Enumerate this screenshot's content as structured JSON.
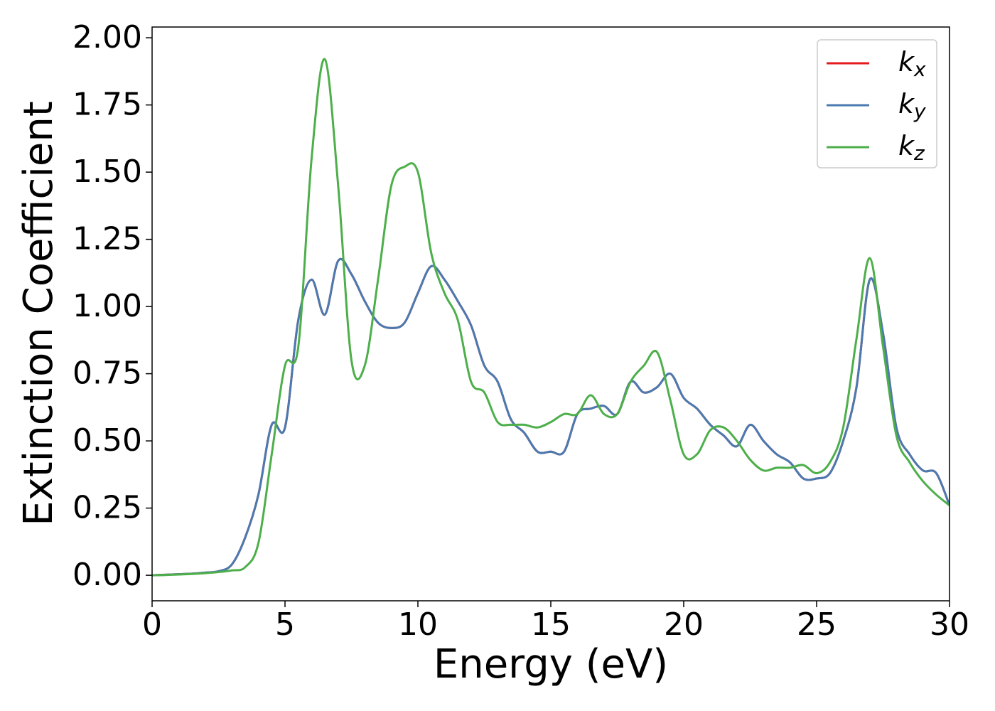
{
  "chart_data": {
    "type": "line",
    "xlabel": "Energy (eV)",
    "ylabel": "Extinction Coefficient",
    "x": [
      0,
      0.5,
      1,
      1.5,
      2,
      2.5,
      3,
      3.5,
      4,
      4.5,
      5,
      5.5,
      6,
      6.5,
      7,
      7.5,
      8,
      8.5,
      9,
      9.5,
      10,
      10.5,
      11,
      11.5,
      12,
      12.5,
      13,
      13.5,
      14,
      14.5,
      15,
      15.5,
      16,
      16.5,
      17,
      17.5,
      18,
      18.5,
      19,
      19.5,
      20,
      20.5,
      21,
      21.5,
      22,
      22.5,
      23,
      23.5,
      24,
      24.5,
      25,
      25.5,
      26,
      26.5,
      27,
      27.5,
      28,
      28.5,
      29,
      29.5,
      30
    ],
    "series": [
      {
        "name": "kx",
        "color": "#e41a1c",
        "values": [
          0,
          0.002,
          0.004,
          0.006,
          0.01,
          0.015,
          0.04,
          0.14,
          0.3,
          0.56,
          0.55,
          0.95,
          1.1,
          0.97,
          1.17,
          1.12,
          1.02,
          0.94,
          0.92,
          0.94,
          1.05,
          1.15,
          1.1,
          1.02,
          0.93,
          0.78,
          0.72,
          0.58,
          0.53,
          0.46,
          0.46,
          0.46,
          0.6,
          0.62,
          0.63,
          0.6,
          0.72,
          0.68,
          0.7,
          0.75,
          0.66,
          0.62,
          0.56,
          0.52,
          0.48,
          0.56,
          0.5,
          0.45,
          0.42,
          0.36,
          0.36,
          0.38,
          0.5,
          0.7,
          1.1,
          0.9,
          0.55,
          0.45,
          0.39,
          0.38,
          0.26
        ]
      },
      {
        "name": "ky",
        "color": "#4a7ab0",
        "values": [
          0,
          0.002,
          0.004,
          0.006,
          0.01,
          0.015,
          0.04,
          0.14,
          0.3,
          0.56,
          0.55,
          0.95,
          1.1,
          0.97,
          1.17,
          1.12,
          1.02,
          0.94,
          0.92,
          0.94,
          1.05,
          1.15,
          1.1,
          1.02,
          0.93,
          0.78,
          0.72,
          0.58,
          0.53,
          0.46,
          0.46,
          0.46,
          0.6,
          0.62,
          0.63,
          0.6,
          0.72,
          0.68,
          0.7,
          0.75,
          0.66,
          0.62,
          0.56,
          0.52,
          0.48,
          0.56,
          0.5,
          0.45,
          0.42,
          0.36,
          0.36,
          0.38,
          0.5,
          0.7,
          1.1,
          0.9,
          0.55,
          0.45,
          0.39,
          0.38,
          0.26
        ]
      },
      {
        "name": "kz",
        "color": "#4daf4a",
        "values": [
          0,
          0.001,
          0.003,
          0.005,
          0.008,
          0.012,
          0.018,
          0.03,
          0.12,
          0.45,
          0.78,
          0.85,
          1.55,
          1.92,
          1.45,
          0.8,
          0.78,
          1.1,
          1.45,
          1.52,
          1.5,
          1.2,
          1.05,
          0.95,
          0.72,
          0.68,
          0.57,
          0.56,
          0.56,
          0.55,
          0.57,
          0.6,
          0.6,
          0.67,
          0.6,
          0.6,
          0.72,
          0.78,
          0.83,
          0.65,
          0.45,
          0.45,
          0.54,
          0.55,
          0.5,
          0.43,
          0.39,
          0.4,
          0.4,
          0.41,
          0.38,
          0.42,
          0.55,
          0.88,
          1.18,
          0.85,
          0.52,
          0.42,
          0.35,
          0.3,
          0.26
        ]
      }
    ],
    "xlim": [
      0,
      30
    ],
    "xticks": [
      0,
      5,
      10,
      15,
      20,
      25,
      30
    ],
    "ylim": [
      -0.095,
      2.04
    ],
    "yticks": [
      {
        "value": 0,
        "label": "0.00"
      },
      {
        "value": 0.25,
        "label": "0.25"
      },
      {
        "value": 0.5,
        "label": "0.50"
      },
      {
        "value": 0.75,
        "label": "0.75"
      },
      {
        "value": 1,
        "label": "1.00"
      },
      {
        "value": 1.25,
        "label": "1.25"
      },
      {
        "value": 1.5,
        "label": "1.50"
      },
      {
        "value": 1.75,
        "label": "1.75"
      },
      {
        "value": 2,
        "label": "2.00"
      }
    ],
    "legend": "upper right",
    "grid": false
  }
}
